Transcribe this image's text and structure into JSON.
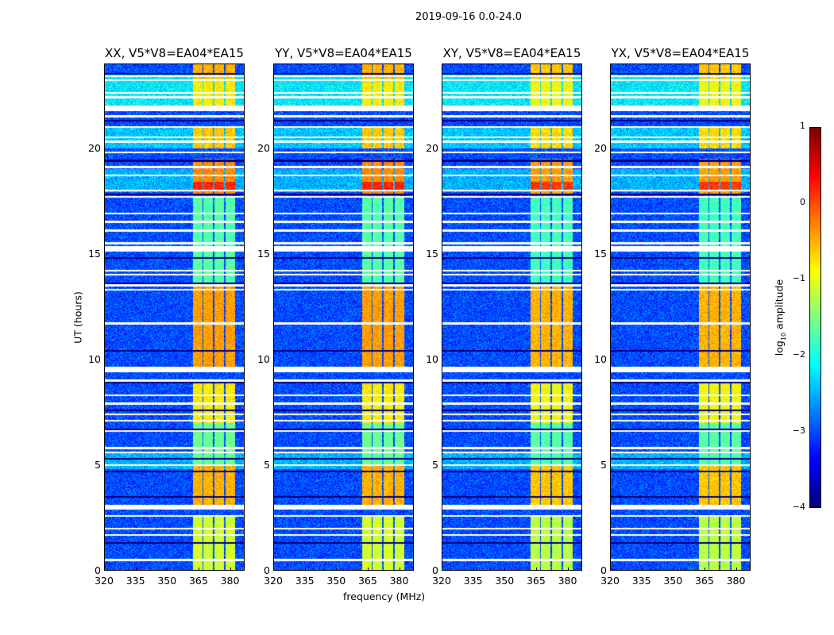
{
  "suptitle": "2019-09-16 0.0-24.0",
  "chart_data": {
    "type": "heatmap",
    "title": "2019-09-16 0.0-24.0",
    "xlabel": "frequency (MHz)",
    "ylabel": "UT (hours)",
    "xlim": [
      320,
      387
    ],
    "ylim": [
      0,
      24
    ],
    "xticks": [
      "320",
      "335",
      "350",
      "365",
      "380"
    ],
    "yticks": [
      "0",
      "5",
      "10",
      "15",
      "20"
    ],
    "panels": [
      {
        "title": "XX, V5*V8=EA04*EA15"
      },
      {
        "title": "YY, V5*V8=EA04*EA15"
      },
      {
        "title": "XY, V5*V8=EA04*EA15"
      },
      {
        "title": "YX, V5*V8=EA04*EA15"
      }
    ],
    "colorbar": {
      "label": "log",
      "label_sub": "10",
      "label_suffix": " amplitude",
      "range": [
        -4,
        1
      ],
      "ticks": [
        "1",
        "0",
        "−1",
        "−2",
        "−3",
        "−4"
      ],
      "colormap": "jet"
    },
    "background_log_amplitude": -3.0,
    "rfi_channels_mhz": [
      [
        362.3,
        366.8
      ],
      [
        367.5,
        371.7
      ],
      [
        372.5,
        377.0
      ],
      [
        378.1,
        382.3
      ]
    ],
    "rfi_segments": [
      {
        "ut": [
          23.2,
          24.0
        ],
        "level": -0.5
      },
      {
        "ut": [
          21.9,
          23.3
        ],
        "level": -0.8
      },
      {
        "ut": [
          20.0,
          21.0
        ],
        "level": -0.6
      },
      {
        "ut": [
          17.8,
          19.5
        ],
        "level": -0.3
      },
      {
        "ut": [
          18.0,
          18.4
        ],
        "level": 0.2
      },
      {
        "ut": [
          13.5,
          17.7
        ],
        "level": -1.7
      },
      {
        "ut": [
          9.5,
          13.5
        ],
        "level": -0.4
      },
      {
        "ut": [
          7.0,
          9.0
        ],
        "level": -0.8
      },
      {
        "ut": [
          5.0,
          7.0
        ],
        "level": -1.6
      },
      {
        "ut": [
          3.1,
          5.0
        ],
        "level": -0.5
      },
      {
        "ut": [
          0.0,
          2.6
        ],
        "level": -1.1
      }
    ],
    "bright_background_segments": [
      {
        "ut": [
          21.9,
          23.5
        ],
        "level": -2.2
      },
      {
        "ut": [
          20.0,
          21.0
        ],
        "level": -2.4
      },
      {
        "ut": [
          17.9,
          19.0
        ],
        "level": -2.5
      },
      {
        "ut": [
          4.8,
          5.6
        ],
        "level": -2.5
      }
    ],
    "flagged_ut": [
      23.4,
      23.2,
      22.6,
      22.4,
      21.9,
      21.8,
      21.5,
      21.0,
      20.5,
      20.3,
      19.8,
      19.1,
      18.7,
      18.0,
      17.7,
      16.9,
      16.5,
      16.1,
      15.5,
      15.3,
      14.2,
      14.0,
      13.5,
      13.3,
      11.7,
      9.6,
      9.5,
      9.0,
      8.3,
      7.9,
      7.4,
      7.1,
      6.6,
      5.8,
      5.6,
      5.0,
      3.0,
      2.6,
      2.0,
      1.7,
      0.5
    ],
    "flagged_ut_wide": [
      [
        21.75,
        22.0
      ],
      [
        15.1,
        15.35
      ],
      [
        9.4,
        9.65
      ],
      [
        2.9,
        3.1
      ]
    ],
    "dark_lines_ut": [
      23.5,
      21.3,
      19.4,
      17.8,
      14.8,
      13.6,
      10.4,
      8.9,
      7.6,
      6.7,
      5.3,
      4.7,
      3.5,
      1.3
    ]
  }
}
